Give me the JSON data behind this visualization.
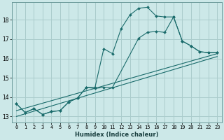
{
  "xlabel": "Humidex (Indice chaleur)",
  "background_color": "#cce8e8",
  "grid_color": "#aacccc",
  "line_color": "#1a6b6b",
  "xlim": [
    -0.5,
    23.5
  ],
  "ylim": [
    12.7,
    18.9
  ],
  "yticks": [
    13,
    14,
    15,
    16,
    17,
    18
  ],
  "xticks": [
    0,
    1,
    2,
    3,
    4,
    5,
    6,
    7,
    8,
    9,
    10,
    11,
    12,
    13,
    14,
    15,
    16,
    17,
    18,
    19,
    20,
    21,
    22,
    23
  ],
  "series1_x": [
    0,
    1,
    2,
    3,
    4,
    5,
    6,
    7,
    8,
    9,
    10,
    11,
    12,
    13,
    14,
    15,
    16,
    17,
    18,
    19,
    20,
    21,
    22,
    23
  ],
  "series1_y": [
    13.65,
    13.2,
    13.4,
    13.1,
    13.25,
    13.3,
    13.75,
    13.95,
    14.5,
    14.5,
    16.5,
    16.25,
    17.55,
    18.25,
    18.6,
    18.65,
    18.2,
    18.15,
    18.15,
    16.9,
    16.65,
    16.35,
    16.3,
    16.3
  ],
  "series2_x": [
    0,
    1,
    2,
    3,
    4,
    5,
    6,
    7,
    8,
    9,
    10,
    11,
    14,
    15,
    16,
    17,
    18,
    19,
    20,
    21,
    22,
    23
  ],
  "series2_y": [
    13.65,
    13.2,
    13.4,
    13.1,
    13.25,
    13.3,
    13.75,
    13.95,
    14.5,
    14.45,
    14.5,
    14.5,
    17.05,
    17.35,
    17.4,
    17.35,
    18.15,
    16.9,
    16.65,
    16.35,
    16.3,
    16.3
  ],
  "series3_x": [
    0,
    23
  ],
  "series3_y": [
    13.3,
    16.25
  ],
  "series4_x": [
    0,
    23
  ],
  "series4_y": [
    13.0,
    16.1
  ]
}
